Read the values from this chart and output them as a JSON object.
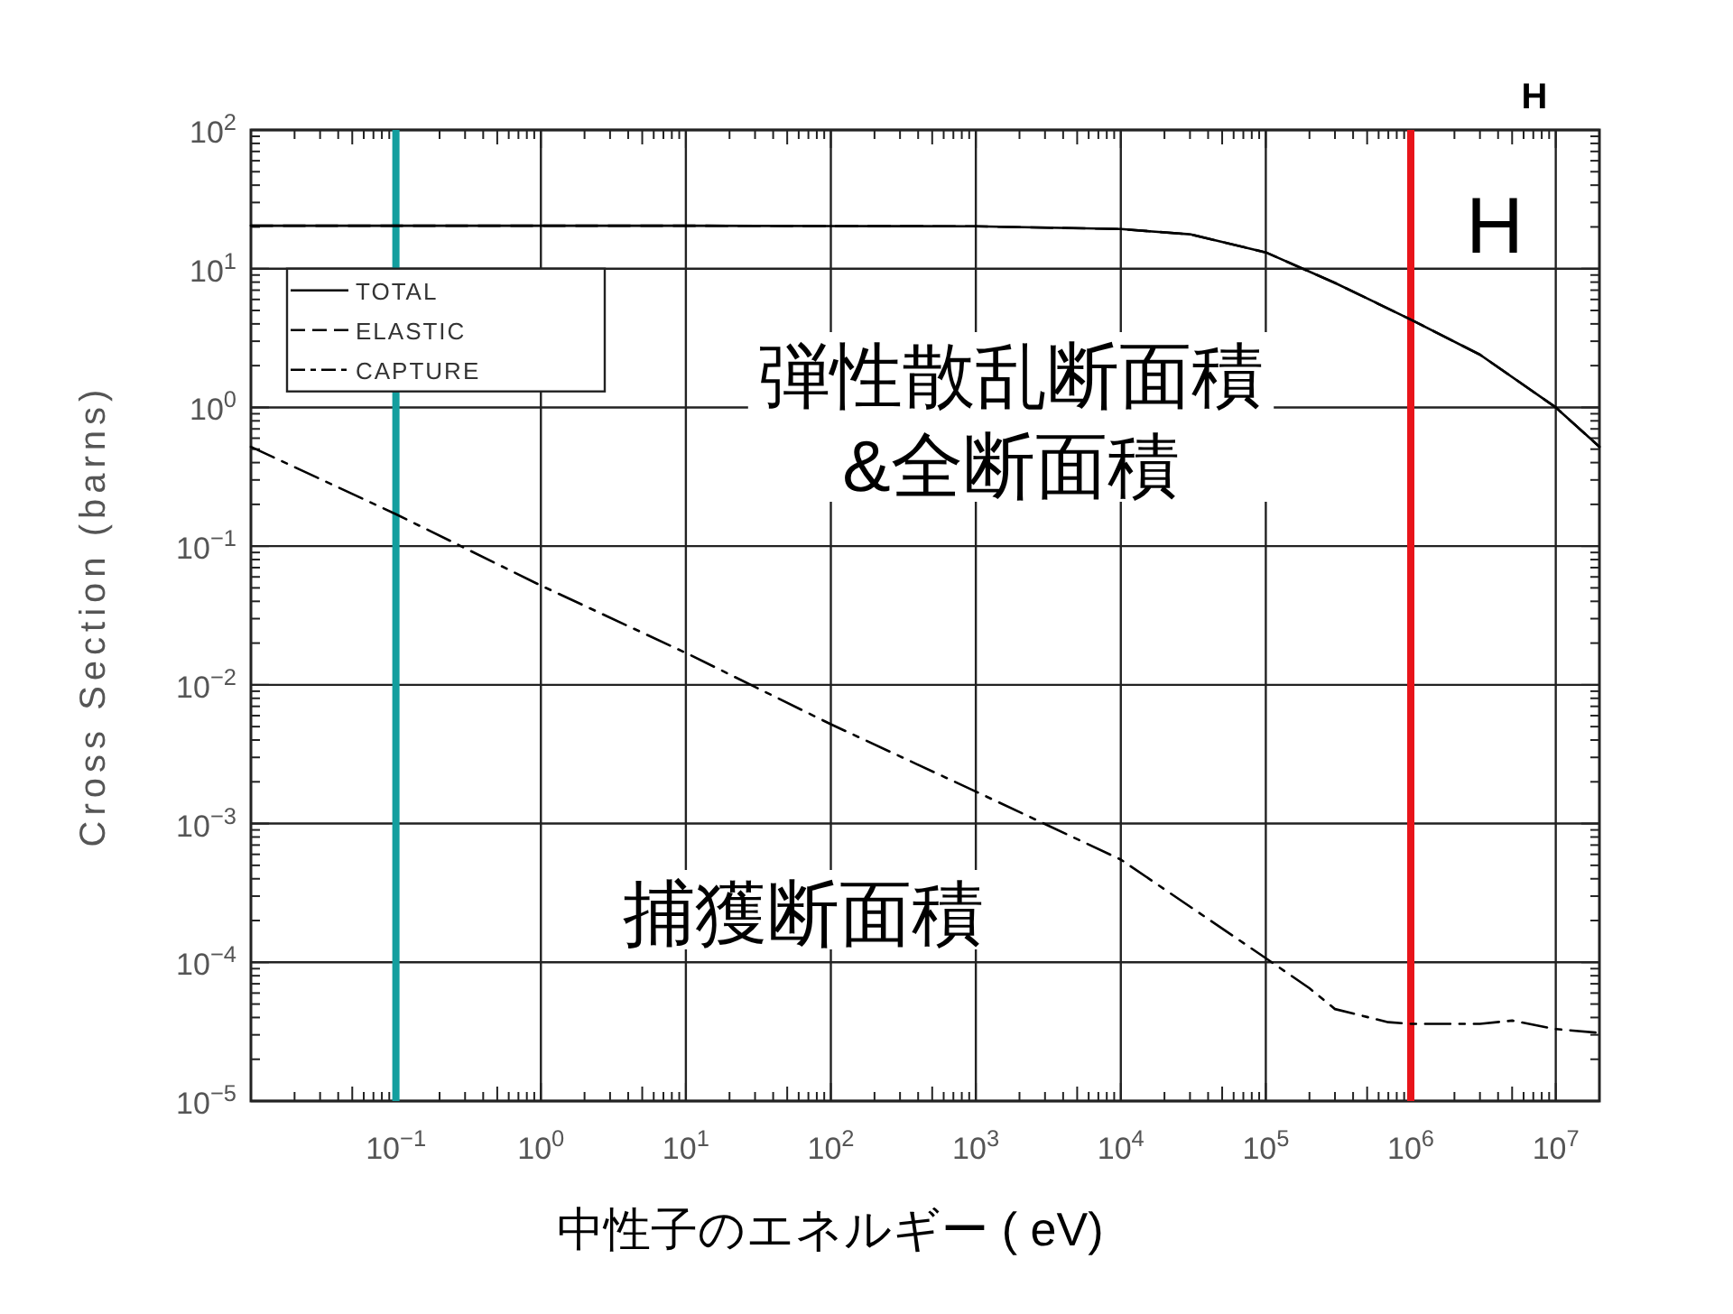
{
  "chart_data": {
    "type": "line",
    "title": "H",
    "xlabel": "中性子のエネルギー ( eV)",
    "ylabel": "Cross Section (barns)",
    "log": "xy",
    "grid": true,
    "legend": "top left",
    "xlim": [
      0.01,
      20000000
    ],
    "ylim": [
      1e-05,
      100
    ],
    "xticks": [
      {
        "value": 0.1,
        "label": "10$^{−1}$"
      },
      {
        "value": 1,
        "label": "10$^{0}$"
      },
      {
        "value": 10,
        "label": "10$^{1}$"
      },
      {
        "value": 100,
        "label": "10$^{2}$"
      },
      {
        "value": 1000,
        "label": "10$^{3}$"
      },
      {
        "value": 10000,
        "label": "10$^{4}$"
      },
      {
        "value": 100000,
        "label": "10$^{5}$"
      },
      {
        "value": 1000000,
        "label": "10$^{6}$"
      },
      {
        "value": 10000000,
        "label": "10$^{7}$"
      }
    ],
    "yticks": [
      {
        "value": 1e-05,
        "label": "10$^{−5}$"
      },
      {
        "value": 0.0001,
        "label": "10$^{−4}$"
      },
      {
        "value": 0.001,
        "label": "10$^{−3}$"
      },
      {
        "value": 0.01,
        "label": "10$^{−2}$"
      },
      {
        "value": 0.1,
        "label": "10$^{−1}$"
      },
      {
        "value": 1,
        "label": "10$^{0}$"
      },
      {
        "value": 10,
        "label": "10$^{1}$"
      },
      {
        "value": 100,
        "label": "10$^{2}$"
      }
    ],
    "series": [
      {
        "name": "TOTAL",
        "color": "#000000",
        "line_style": "solid",
        "x": [
          0.01,
          0.1,
          1,
          10,
          100,
          1000,
          10000,
          30000,
          100000,
          300000,
          1000000,
          3000000,
          10000000,
          20000000
        ],
        "values": [
          20.4,
          20.4,
          20.4,
          20.4,
          20.3,
          20.2,
          19.3,
          17.7,
          13.1,
          7.9,
          4.3,
          2.4,
          1.0,
          0.52
        ]
      },
      {
        "name": "ELASTIC",
        "color": "#000000",
        "line_style": "dashed",
        "x": [
          0.01,
          0.1,
          1,
          10,
          100,
          1000,
          10000,
          30000,
          100000,
          300000,
          1000000,
          3000000,
          10000000,
          20000000
        ],
        "values": [
          20.4,
          20.4,
          20.4,
          20.4,
          20.3,
          20.2,
          19.3,
          17.7,
          13.1,
          7.9,
          4.3,
          2.4,
          1.0,
          0.52
        ]
      },
      {
        "name": "CAPTURE",
        "color": "#000000",
        "line_style": "dashdot",
        "x": [
          0.01,
          0.1,
          1,
          10,
          100,
          1000,
          10000,
          100000,
          200000,
          300000,
          700000,
          1000000,
          3000000,
          5000000,
          10000000,
          20000000
        ],
        "values": [
          0.52,
          0.17,
          0.052,
          0.017,
          0.0052,
          0.0017,
          0.00055,
          0.000107,
          6.5e-05,
          4.6e-05,
          3.7e-05,
          3.6e-05,
          3.6e-05,
          3.8e-05,
          3.3e-05,
          3.1e-05
        ]
      }
    ],
    "ref_lines": [
      {
        "axis": "x",
        "value": 0.1,
        "color": "#139e9e"
      },
      {
        "axis": "x",
        "value": 1000000,
        "color": "#e8141a"
      }
    ],
    "annotations": [
      "H",
      "弾性散乱断面積\n&全断面積",
      "捕獲断面積"
    ]
  }
}
